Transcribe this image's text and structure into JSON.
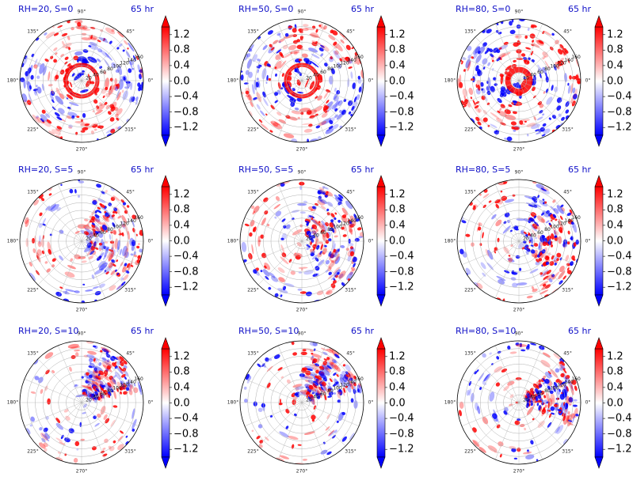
{
  "chart_data": {
    "type": "heatmap",
    "projection": "polar",
    "grid": true,
    "angular_tick_labels": [
      "0°",
      "45°",
      "90°",
      "135°",
      "180°",
      "225°",
      "270°",
      "315°"
    ],
    "radial_tick_labels": [
      "20",
      "40",
      "60",
      "80",
      "100",
      "120",
      "140",
      "160"
    ],
    "radial_ticks": [
      20,
      40,
      60,
      80,
      100,
      120,
      140,
      160
    ],
    "colorbar": {
      "colormap": "bwr",
      "range": [
        -1.4,
        1.4
      ],
      "extend": "both",
      "ticks": [
        1.2,
        0.8,
        0.4,
        0.0,
        -0.4,
        -0.8,
        -1.2
      ],
      "tick_labels": [
        "1.2",
        "0.8",
        "0.4",
        "0.0",
        "−0.4",
        "−0.8",
        "−1.2"
      ]
    },
    "panels": [
      {
        "title": "RH=20, S=0",
        "time": "65 hr"
      },
      {
        "title": "RH=50, S=0",
        "time": "65 hr"
      },
      {
        "title": "RH=80, S=0",
        "time": "65 hr"
      },
      {
        "title": "RH=20, S=5",
        "time": "65 hr"
      },
      {
        "title": "RH=50, S=5",
        "time": "65 hr"
      },
      {
        "title": "RH=80, S=5",
        "time": "65 hr"
      },
      {
        "title": "RH=20, S=10",
        "time": "65 hr"
      },
      {
        "title": "RH=50, S=10",
        "time": "65 hr"
      },
      {
        "title": "RH=80, S=10",
        "time": "65 hr"
      }
    ]
  },
  "colors": {
    "positive": "#ff0000",
    "negative": "#0000ff",
    "neutral": "#ffffff",
    "title_text": "#1010c8",
    "grid": "#b0b0b0"
  }
}
